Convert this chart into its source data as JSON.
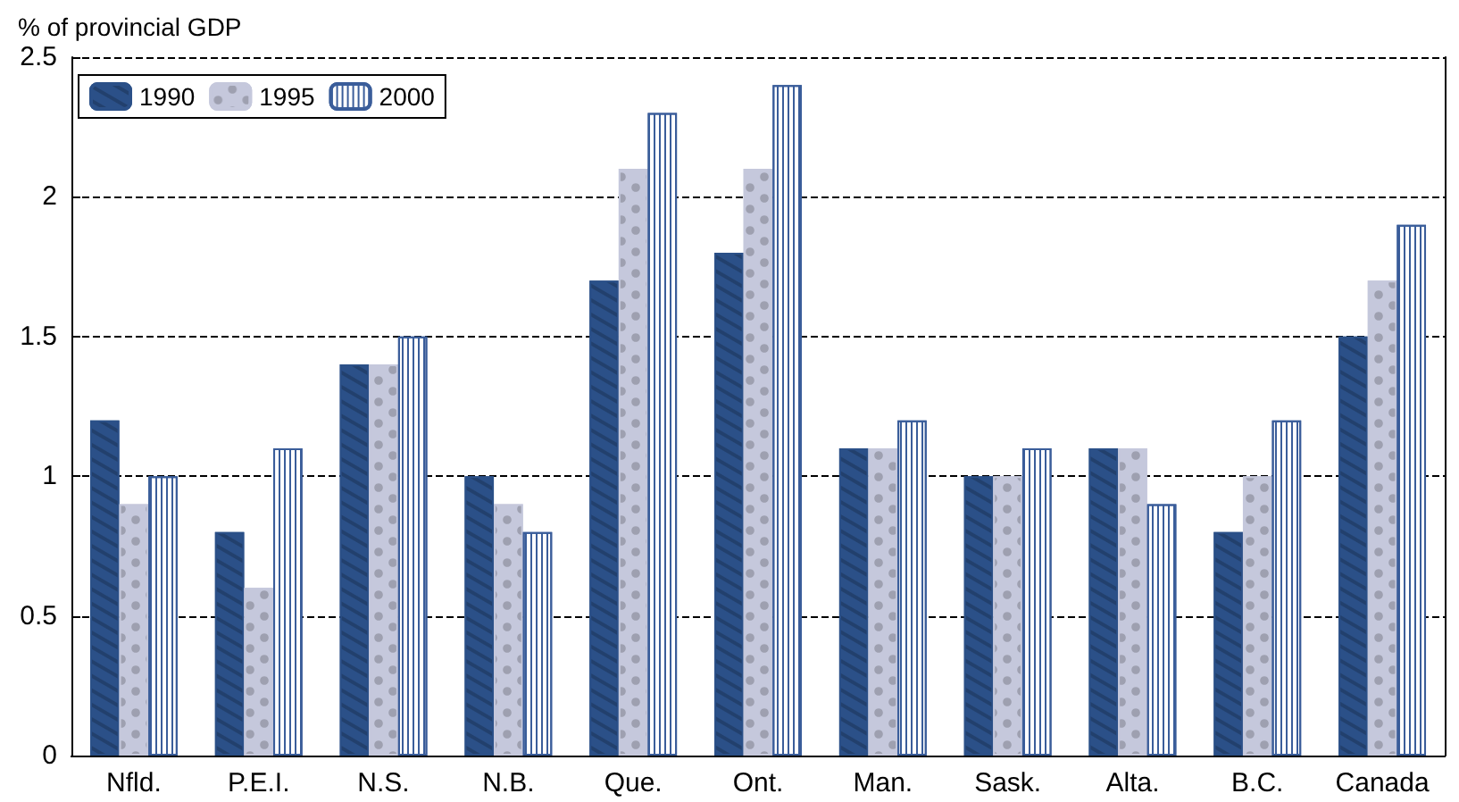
{
  "chart_data": {
    "type": "bar",
    "ylabel": "% of provincial GDP",
    "categories": [
      "Nfld.",
      "P.E.I.",
      "N.S.",
      "N.B.",
      "Que.",
      "Ont.",
      "Man.",
      "Sask.",
      "Alta.",
      "B.C.",
      "Canada"
    ],
    "series": [
      {
        "name": "1990",
        "color": "#2b5088",
        "values": [
          1.2,
          0.8,
          1.4,
          1.0,
          1.7,
          1.8,
          1.1,
          1.0,
          1.1,
          0.8,
          1.5
        ]
      },
      {
        "name": "1995",
        "color": "#c5c8dc",
        "values": [
          0.9,
          0.6,
          1.4,
          0.9,
          2.1,
          2.1,
          1.1,
          1.0,
          1.1,
          1.0,
          1.7
        ]
      },
      {
        "name": "2000",
        "color": "#3a5d9a",
        "values": [
          1.0,
          1.1,
          1.5,
          0.8,
          2.3,
          2.4,
          1.2,
          1.1,
          0.9,
          1.2,
          1.9
        ]
      }
    ],
    "ylim": [
      0,
      2.5
    ],
    "yticks": [
      0,
      0.5,
      1,
      1.5,
      2,
      2.5
    ],
    "grid": "y",
    "legend": "top left"
  }
}
